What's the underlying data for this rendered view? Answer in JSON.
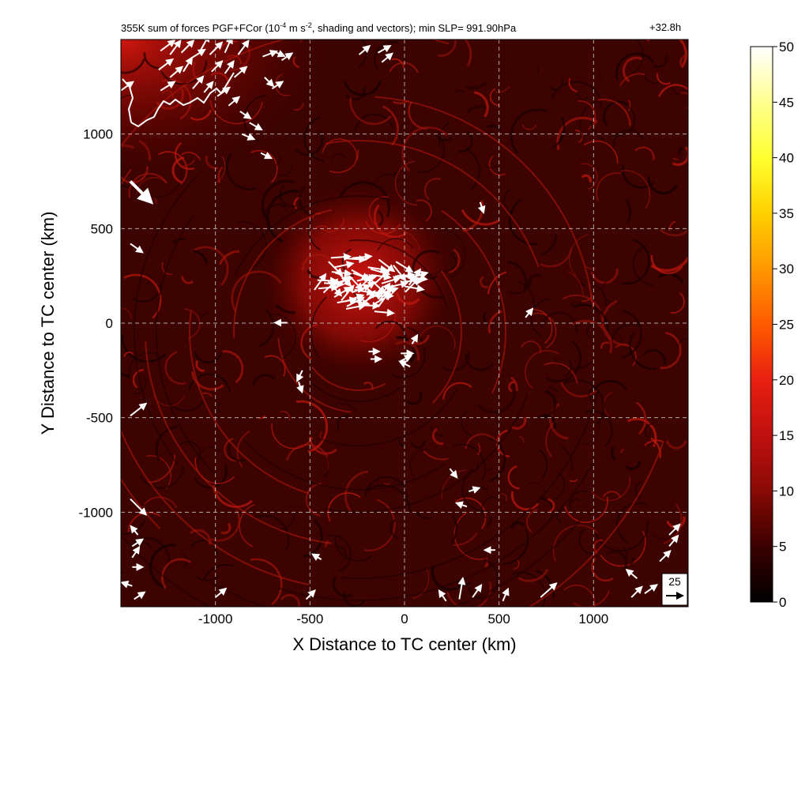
{
  "chart_data": {
    "type": "heatmap",
    "title_prefix": "355K sum of forces PGF+FCor (10",
    "title_exp1": "-4",
    "title_mid": " m s",
    "title_exp2": "-2",
    "title_suffix": ", shading and vectors); min SLP= 991.90hPa",
    "time_label": "+32.8h",
    "xlabel": "X Distance to TC center (km)",
    "ylabel": "Y Distance to TC center (km)",
    "xlim": [
      -1500,
      1500
    ],
    "ylim": [
      -1500,
      1500
    ],
    "xticks": [
      -1000,
      -500,
      0,
      500,
      1000
    ],
    "yticks": [
      -1000,
      -500,
      0,
      500,
      1000
    ],
    "grid": true,
    "colorbar": {
      "min": 0,
      "max": 50,
      "ticks": [
        0,
        5,
        10,
        15,
        20,
        25,
        30,
        35,
        40,
        45,
        50
      ],
      "colors": [
        "#000000",
        "#3a0000",
        "#8a0a05",
        "#c01010",
        "#e82010",
        "#ff5a00",
        "#ff9800",
        "#ffd000",
        "#ffff30",
        "#ffff90",
        "#ffffff"
      ]
    },
    "reference_vector": {
      "label": "25",
      "value": 25
    },
    "vectors": [
      {
        "x": -1290,
        "y": 1440,
        "u": 8,
        "v": 6
      },
      {
        "x": -1240,
        "y": 1420,
        "u": 6,
        "v": 8
      },
      {
        "x": -1180,
        "y": 1430,
        "u": 7,
        "v": 7
      },
      {
        "x": -1130,
        "y": 1400,
        "u": 8,
        "v": 5
      },
      {
        "x": -1080,
        "y": 1440,
        "u": 5,
        "v": 9
      },
      {
        "x": -1030,
        "y": 1420,
        "u": 7,
        "v": 7
      },
      {
        "x": -950,
        "y": 1430,
        "u": 4,
        "v": 9
      },
      {
        "x": -880,
        "y": 1420,
        "u": 6,
        "v": 8
      },
      {
        "x": -1300,
        "y": 1340,
        "u": 8,
        "v": 6
      },
      {
        "x": -1240,
        "y": 1300,
        "u": 7,
        "v": 6
      },
      {
        "x": -1170,
        "y": 1330,
        "u": 5,
        "v": 8
      },
      {
        "x": -1020,
        "y": 1330,
        "u": 6,
        "v": 6
      },
      {
        "x": -950,
        "y": 1320,
        "u": 5,
        "v": 7
      },
      {
        "x": -900,
        "y": 1300,
        "u": 7,
        "v": 6
      },
      {
        "x": -1290,
        "y": 1230,
        "u": 8,
        "v": 5
      },
      {
        "x": -1120,
        "y": 1240,
        "u": 6,
        "v": 7
      },
      {
        "x": -1060,
        "y": 1220,
        "u": 5,
        "v": 6
      },
      {
        "x": -990,
        "y": 1200,
        "u": 7,
        "v": 5
      },
      {
        "x": -930,
        "y": 1150,
        "u": 6,
        "v": 5
      },
      {
        "x": -870,
        "y": 1120,
        "u": 6,
        "v": -4
      },
      {
        "x": -820,
        "y": 1060,
        "u": 7,
        "v": -4
      },
      {
        "x": -860,
        "y": 1000,
        "u": 7,
        "v": -3
      },
      {
        "x": -760,
        "y": 900,
        "u": 6,
        "v": -3
      },
      {
        "x": -750,
        "y": 1410,
        "u": 8,
        "v": 3
      },
      {
        "x": -700,
        "y": 1440,
        "u": 7,
        "v": -3
      },
      {
        "x": -650,
        "y": 1390,
        "u": 6,
        "v": 4
      },
      {
        "x": -740,
        "y": 1300,
        "u": 5,
        "v": -5
      },
      {
        "x": -700,
        "y": 1240,
        "u": 6,
        "v": 4
      },
      {
        "x": -240,
        "y": 1420,
        "u": 6,
        "v": 5
      },
      {
        "x": -140,
        "y": 1430,
        "u": 7,
        "v": 4
      },
      {
        "x": -120,
        "y": 1380,
        "u": 6,
        "v": 5
      },
      {
        "x": -1450,
        "y": 750,
        "u": 12,
        "v": -12
      },
      {
        "x": -1450,
        "y": 420,
        "u": 7,
        "v": -5
      },
      {
        "x": -1450,
        "y": -490,
        "u": 9,
        "v": 7
      },
      {
        "x": -1450,
        "y": -930,
        "u": 9,
        "v": -9
      },
      {
        "x": 400,
        "y": 640,
        "u": 2,
        "v": -6
      },
      {
        "x": 640,
        "y": 30,
        "u": 4,
        "v": 5
      },
      {
        "x": -620,
        "y": 2,
        "u": -7,
        "v": 0
      },
      {
        "x": -540,
        "y": -250,
        "u": -3,
        "v": -6
      },
      {
        "x": -560,
        "y": -310,
        "u": 2,
        "v": -6
      },
      {
        "x": -190,
        "y": -150,
        "u": 6,
        "v": 0
      },
      {
        "x": -180,
        "y": -190,
        "u": 6,
        "v": 0
      },
      {
        "x": -20,
        "y": -160,
        "u": 7,
        "v": 0
      },
      {
        "x": -20,
        "y": -200,
        "u": 6,
        "v": 3
      },
      {
        "x": 30,
        "y": -230,
        "u": -6,
        "v": 3
      },
      {
        "x": 40,
        "y": -110,
        "u": 3,
        "v": 5
      },
      {
        "x": 240,
        "y": -770,
        "u": 4,
        "v": -5
      },
      {
        "x": 340,
        "y": -890,
        "u": 6,
        "v": 2
      },
      {
        "x": 330,
        "y": -970,
        "u": -6,
        "v": 2
      },
      {
        "x": 480,
        "y": -1200,
        "u": -6,
        "v": 0
      },
      {
        "x": 290,
        "y": -1460,
        "u": 2,
        "v": 12
      },
      {
        "x": 360,
        "y": -1450,
        "u": 5,
        "v": 7
      },
      {
        "x": 220,
        "y": -1470,
        "u": -4,
        "v": 6
      },
      {
        "x": 520,
        "y": -1470,
        "u": 3,
        "v": 7
      },
      {
        "x": 720,
        "y": -1450,
        "u": 9,
        "v": 8
      },
      {
        "x": 1200,
        "y": -1450,
        "u": 6,
        "v": 6
      },
      {
        "x": 1270,
        "y": -1430,
        "u": 7,
        "v": 5
      },
      {
        "x": 1350,
        "y": -1260,
        "u": 6,
        "v": 6
      },
      {
        "x": 1400,
        "y": -1180,
        "u": 5,
        "v": 6
      },
      {
        "x": 1400,
        "y": -1120,
        "u": 6,
        "v": 6
      },
      {
        "x": 1230,
        "y": -1350,
        "u": -6,
        "v": 5
      },
      {
        "x": -1440,
        "y": -1290,
        "u": 6,
        "v": 0
      },
      {
        "x": -1440,
        "y": -1390,
        "u": -6,
        "v": 2
      },
      {
        "x": -1440,
        "y": -1240,
        "u": 4,
        "v": 6
      },
      {
        "x": -1440,
        "y": -1180,
        "u": 6,
        "v": 4
      },
      {
        "x": -1430,
        "y": -1460,
        "u": 6,
        "v": 4
      },
      {
        "x": -1000,
        "y": -1450,
        "u": 6,
        "v": 5
      },
      {
        "x": -520,
        "y": -1460,
        "u": 5,
        "v": 5
      },
      {
        "x": -440,
        "y": -1250,
        "u": -5,
        "v": 3
      },
      {
        "x": -1410,
        "y": -1120,
        "u": -4,
        "v": 5
      },
      {
        "x": -1500,
        "y": 1230,
        "u": 7,
        "v": 5
      }
    ],
    "core_vectors": {
      "center": [
        -230,
        220
      ],
      "radius": 230,
      "count": 58,
      "magnitude": 11
    }
  }
}
